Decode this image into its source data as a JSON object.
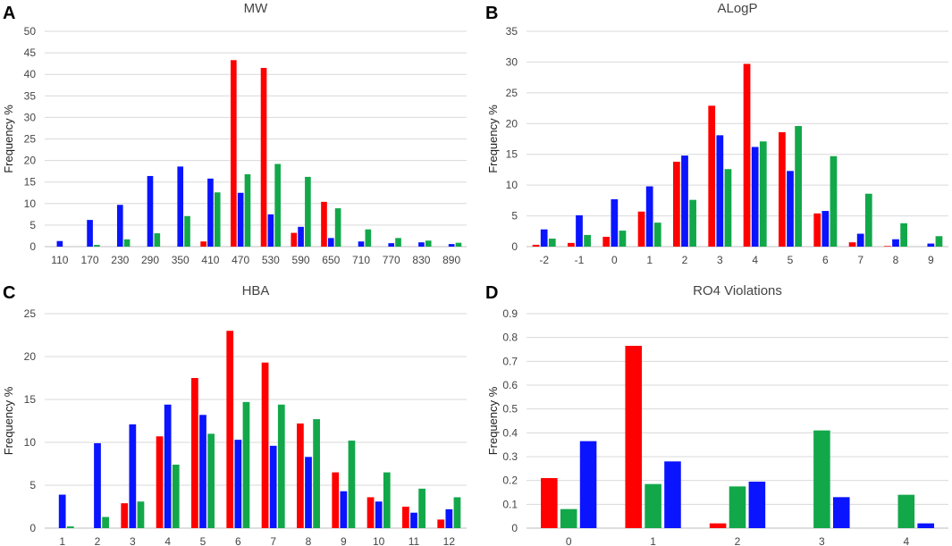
{
  "colors": {
    "red": "#ff0000",
    "blue": "#0a14ff",
    "green": "#12a84a"
  },
  "chart_data": [
    {
      "panel": "A",
      "type": "bar",
      "title": "MW",
      "ylabel": "Frequency %",
      "xlabel": "",
      "ylim": [
        0,
        50
      ],
      "yticks": [
        0,
        5,
        10,
        15,
        20,
        25,
        30,
        35,
        40,
        45,
        50
      ],
      "categories": [
        "110",
        "170",
        "230",
        "290",
        "350",
        "410",
        "470",
        "530",
        "590",
        "650",
        "710",
        "770",
        "830",
        "890"
      ],
      "series": [
        {
          "name": "red",
          "color": "#ff0000",
          "values": [
            0,
            0,
            0,
            0,
            0,
            1.2,
            43.3,
            41.5,
            3.2,
            10.4,
            0,
            0,
            0,
            0
          ]
        },
        {
          "name": "blue",
          "color": "#0a14ff",
          "values": [
            1.3,
            6.2,
            9.7,
            16.4,
            18.6,
            15.8,
            12.5,
            7.5,
            4.6,
            2.0,
            1.2,
            0.8,
            1.0,
            0.6
          ]
        },
        {
          "name": "green",
          "color": "#12a84a",
          "values": [
            0,
            0.4,
            1.7,
            3.1,
            7.1,
            12.6,
            16.8,
            19.2,
            16.2,
            8.9,
            4.0,
            2.0,
            1.4,
            0.9
          ]
        }
      ]
    },
    {
      "panel": "B",
      "type": "bar",
      "title": "ALogP",
      "ylabel": "Frequency %",
      "xlabel": "",
      "ylim": [
        0,
        35
      ],
      "yticks": [
        0,
        5,
        10,
        15,
        20,
        25,
        30,
        35
      ],
      "categories": [
        "-2",
        "-1",
        "0",
        "1",
        "2",
        "3",
        "4",
        "5",
        "6",
        "7",
        "8",
        "9"
      ],
      "series": [
        {
          "name": "red",
          "color": "#ff0000",
          "values": [
            0.3,
            0.6,
            1.6,
            5.7,
            13.8,
            22.9,
            29.7,
            18.6,
            5.4,
            0.7,
            0.1,
            0
          ]
        },
        {
          "name": "blue",
          "color": "#0a14ff",
          "values": [
            2.8,
            5.1,
            7.7,
            9.8,
            14.8,
            18.1,
            16.2,
            12.3,
            5.8,
            2.1,
            1.2,
            0.5
          ]
        },
        {
          "name": "green",
          "color": "#12a84a",
          "values": [
            1.3,
            1.9,
            2.6,
            3.9,
            7.6,
            12.6,
            17.1,
            19.6,
            14.7,
            8.6,
            3.8,
            1.7
          ]
        }
      ]
    },
    {
      "panel": "C",
      "type": "bar",
      "title": "HBA",
      "ylabel": "Frequency %",
      "xlabel": "",
      "ylim": [
        0,
        25
      ],
      "yticks": [
        0,
        5,
        10,
        15,
        20,
        25
      ],
      "categories": [
        "1",
        "2",
        "3",
        "4",
        "5",
        "6",
        "7",
        "8",
        "9",
        "10",
        "11",
        "12"
      ],
      "series": [
        {
          "name": "red",
          "color": "#ff0000",
          "values": [
            0,
            0,
            2.9,
            10.7,
            17.5,
            23.0,
            19.3,
            12.2,
            6.5,
            3.6,
            2.5,
            1.0
          ]
        },
        {
          "name": "blue",
          "color": "#0a14ff",
          "values": [
            3.9,
            9.9,
            12.1,
            14.4,
            13.2,
            10.3,
            9.6,
            8.3,
            4.3,
            3.1,
            1.8,
            2.2
          ]
        },
        {
          "name": "green",
          "color": "#12a84a",
          "values": [
            0.2,
            1.3,
            3.1,
            7.4,
            11.0,
            14.7,
            14.4,
            12.7,
            10.2,
            6.5,
            4.6,
            3.6
          ]
        }
      ]
    },
    {
      "panel": "D",
      "type": "bar",
      "title": "RO4 Violations",
      "ylabel": "Frequency %",
      "xlabel": "",
      "ylim": [
        0,
        0.9
      ],
      "yticks": [
        0,
        0.1,
        0.2,
        0.3,
        0.4,
        0.5,
        0.6,
        0.7,
        0.8,
        0.9
      ],
      "categories": [
        "0",
        "1",
        "2",
        "3",
        "4"
      ],
      "series": [
        {
          "name": "red",
          "color": "#ff0000",
          "values": [
            0.21,
            0.765,
            0.02,
            0,
            0
          ]
        },
        {
          "name": "green",
          "color": "#12a84a",
          "values": [
            0.08,
            0.185,
            0.175,
            0.41,
            0.14
          ]
        },
        {
          "name": "blue",
          "color": "#0a14ff",
          "values": [
            0.365,
            0.28,
            0.195,
            0.13,
            0.02
          ]
        }
      ]
    }
  ]
}
